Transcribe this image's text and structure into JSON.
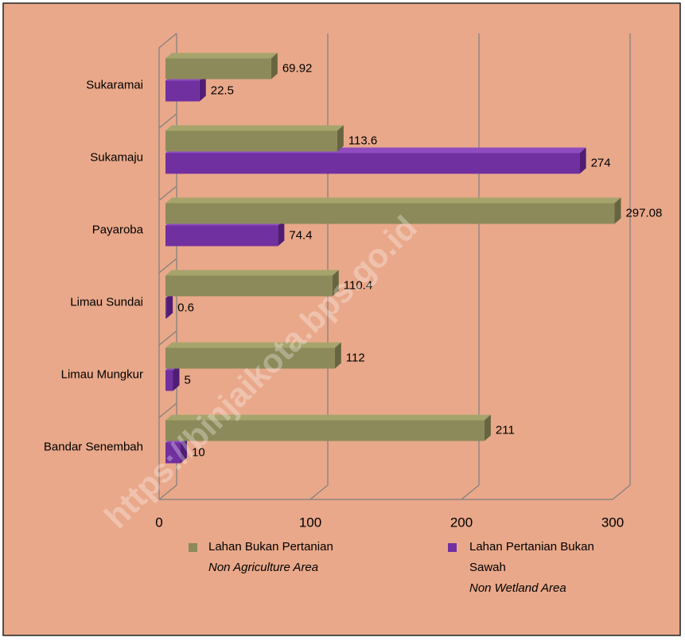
{
  "chart_data": {
    "type": "bar",
    "orientation": "horizontal",
    "categories": [
      "Sukaramai",
      "Sukamaju",
      "Payaroba",
      "Limau Sundai",
      "Limau Mungkur",
      "Bandar Senembah"
    ],
    "series": [
      {
        "name": "Lahan Bukan Pertanian",
        "name_en": "Non Agriculture Area",
        "color": "#8c8a5a",
        "values": [
          69.92,
          113.6,
          297.08,
          110.4,
          112,
          211
        ]
      },
      {
        "name": "Lahan Pertanian Bukan Sawah",
        "name_en": "Non Wetland Area",
        "color": "#7030a0",
        "values": [
          22.5,
          274,
          74.4,
          0.6,
          5,
          10
        ]
      }
    ],
    "xlim": [
      0,
      300
    ],
    "xticks": [
      0,
      100,
      200,
      300
    ],
    "grid": true,
    "legend": "bottom",
    "watermark": "https://binjaikota.bps.go.id"
  }
}
